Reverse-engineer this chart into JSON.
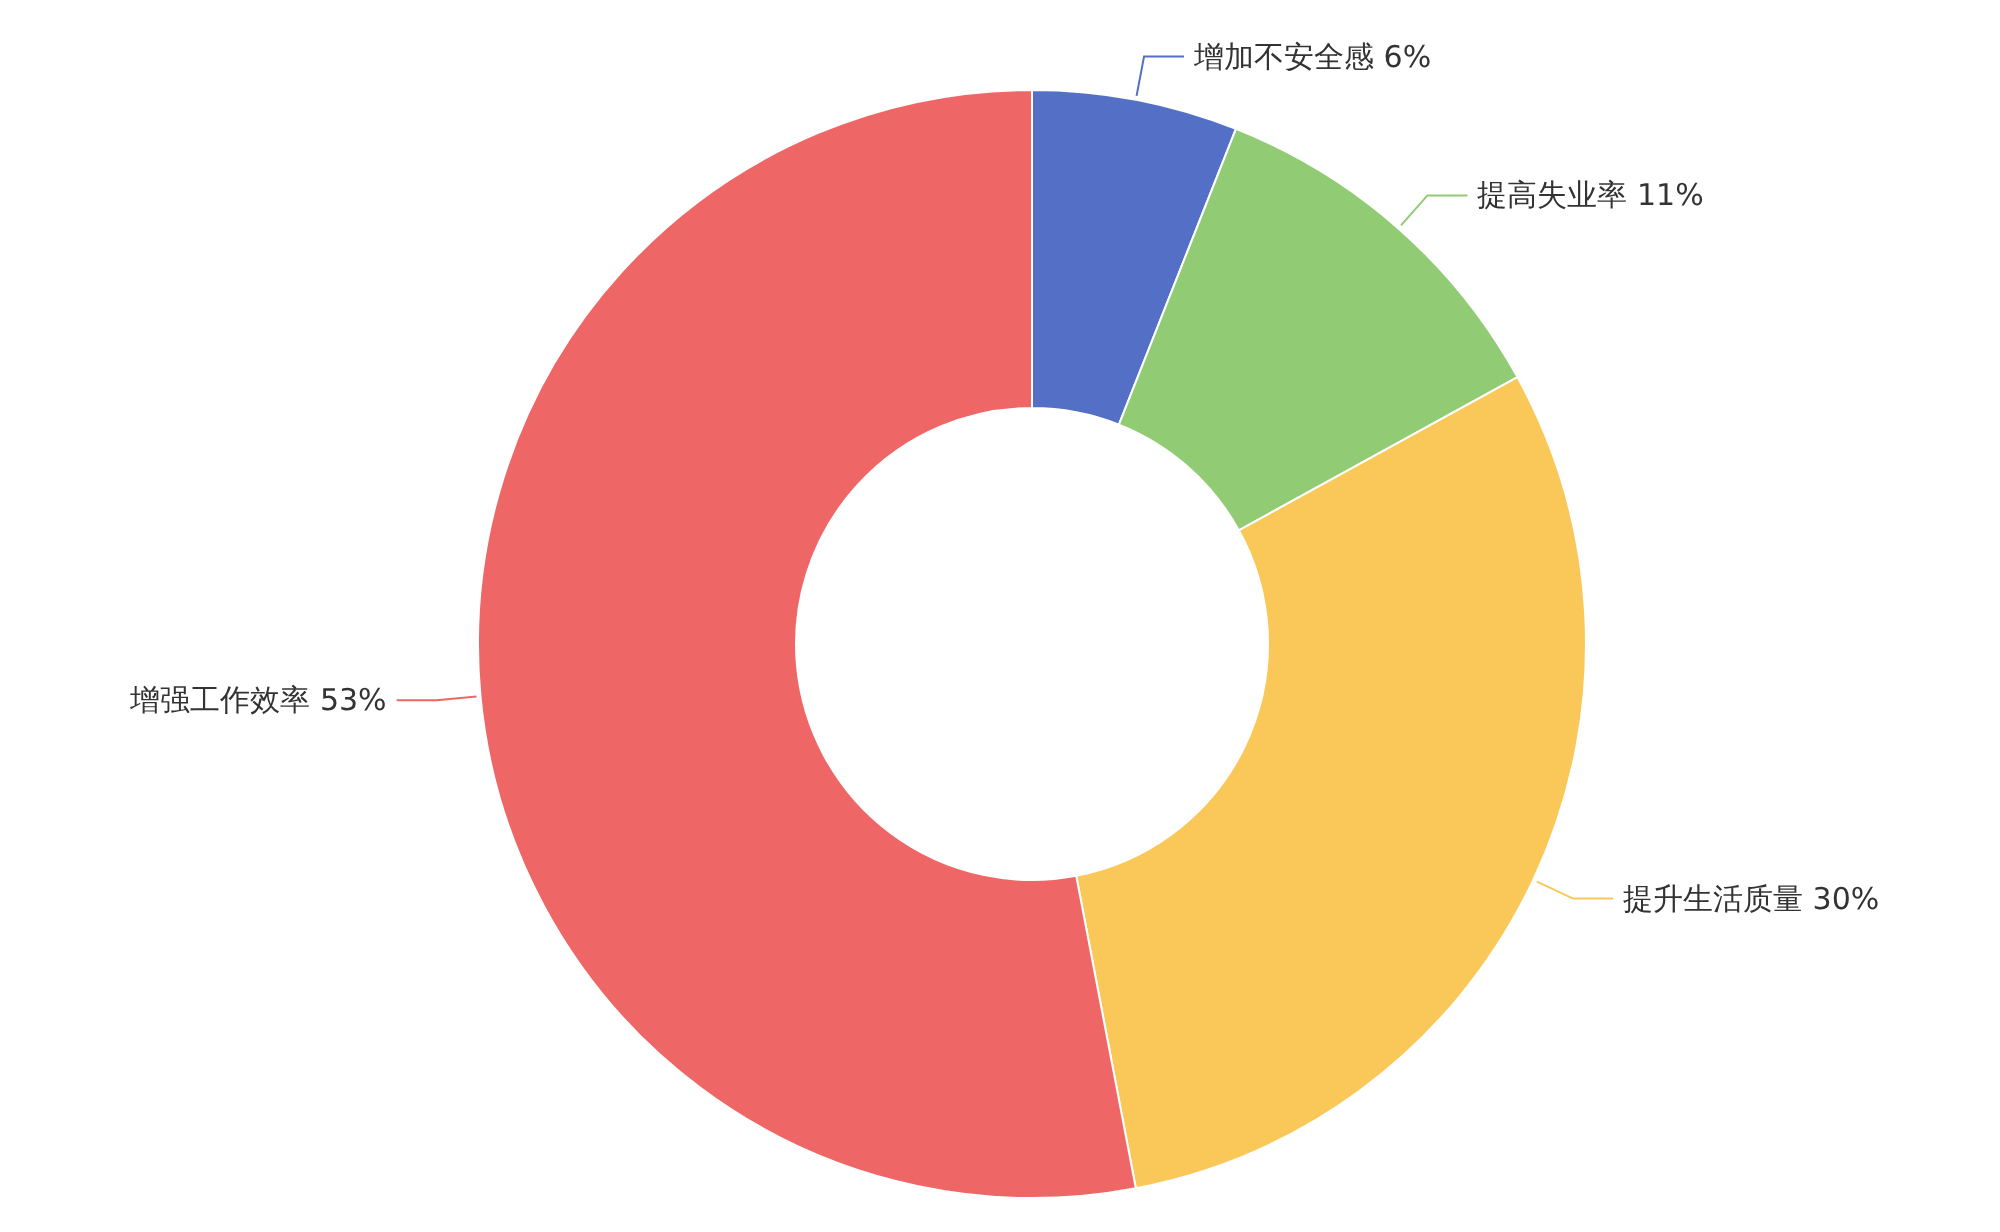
{
  "chart_data": {
    "type": "donut",
    "categories": [
      "增加不安全感",
      "提高失业率",
      "提升生活质量",
      "增强工作效率"
    ],
    "values": [
      6,
      11,
      30,
      53
    ],
    "value_labels": [
      "6%",
      "11%",
      "30%",
      "53%"
    ],
    "colors": [
      "#5470c6",
      "#91cc75",
      "#fac858",
      "#ee6666"
    ]
  }
}
